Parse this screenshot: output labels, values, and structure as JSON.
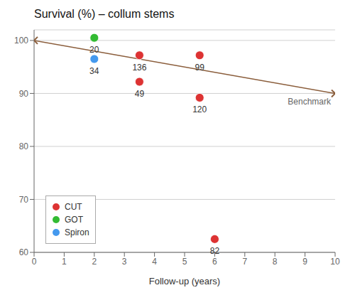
{
  "chart_data": {
    "type": "scatter",
    "title": "Survival (%) – collum stems",
    "x_label": "Follow-up (years)",
    "xlim": [
      0,
      10
    ],
    "ylim": [
      60,
      102
    ],
    "xticks": [
      0,
      1,
      2,
      3,
      4,
      5,
      6,
      7,
      8,
      9,
      10
    ],
    "yticks": [
      60,
      70,
      80,
      90,
      100
    ],
    "grid": "y",
    "legend": "lower left",
    "series": [
      {
        "name": "CUT",
        "color": "#dd3333",
        "marker": "circle",
        "x": [
          3.5,
          3.5,
          5.5,
          5.5,
          6.0
        ],
        "values": [
          97.2,
          92.2,
          97.2,
          89.2,
          62.5
        ],
        "labels": [
          "136",
          "49",
          "99",
          "120",
          "82"
        ]
      },
      {
        "name": "GOT",
        "color": "#33bb33",
        "marker": "circle",
        "x": [
          2.0
        ],
        "values": [
          100.5
        ],
        "labels": [
          "20"
        ]
      },
      {
        "name": "Spiron",
        "color": "#4499ee",
        "marker": "circle",
        "x": [
          2.0
        ],
        "values": [
          96.5
        ],
        "labels": [
          "34"
        ]
      },
      {
        "name": "Benchmark",
        "type": "line",
        "color": "#8B5E3C",
        "marker": "x",
        "x": [
          0,
          10
        ],
        "values": [
          100,
          90
        ]
      }
    ]
  }
}
